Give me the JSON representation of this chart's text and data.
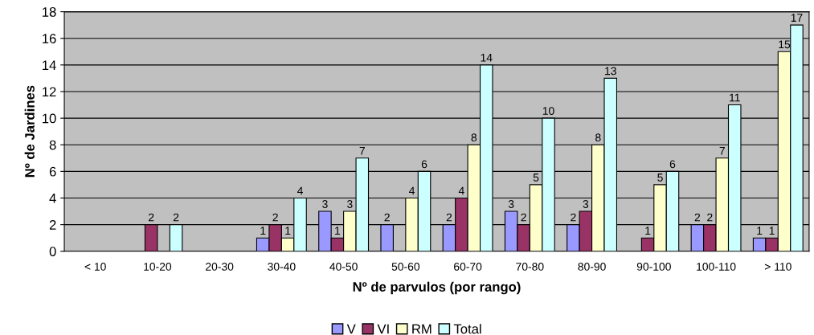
{
  "chart_data": {
    "type": "bar",
    "xlabel": "Nº de parvulos (por rango)",
    "ylabel": "Nº de Jardines",
    "categories": [
      "< 10",
      "10-20",
      "20-30",
      "30-40",
      "40-50",
      "50-60",
      "60-70",
      "70-80",
      "80-90",
      "90-100",
      "100-110",
      "> 110"
    ],
    "series": [
      {
        "name": "V",
        "color": "#9999ff",
        "values": [
          null,
          null,
          null,
          1,
          3,
          2,
          2,
          3,
          2,
          null,
          2,
          1
        ]
      },
      {
        "name": "VI",
        "color": "#993366",
        "values": [
          null,
          2,
          null,
          2,
          1,
          null,
          4,
          2,
          3,
          1,
          2,
          1
        ]
      },
      {
        "name": "RM",
        "color": "#ffffcc",
        "values": [
          null,
          null,
          null,
          1,
          3,
          4,
          8,
          5,
          8,
          5,
          7,
          15
        ]
      },
      {
        "name": "Total",
        "color": "#ccffff",
        "values": [
          null,
          2,
          null,
          4,
          7,
          6,
          14,
          10,
          13,
          6,
          11,
          17
        ]
      }
    ],
    "data_labels": true,
    "ylim": [
      0,
      18
    ],
    "yticks": [
      0,
      2,
      4,
      6,
      8,
      10,
      12,
      14,
      16,
      18
    ],
    "grid": "y",
    "legend": "bottom"
  }
}
